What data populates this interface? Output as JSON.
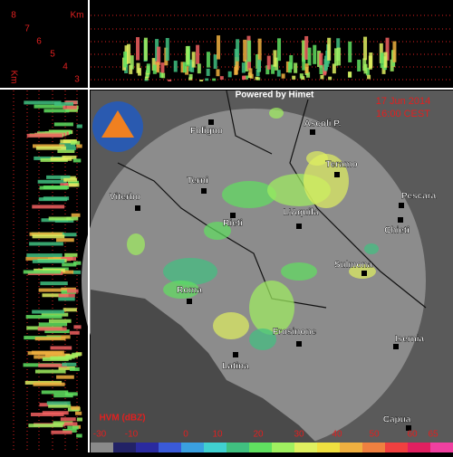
{
  "header": {
    "powered_by": "Powered by Himet",
    "date": "17 Jun 2014",
    "time": "16:00 CEST"
  },
  "height_scale": {
    "unit": "Km",
    "levels": [
      8,
      7,
      6,
      5,
      4,
      3
    ]
  },
  "cities": [
    "Foligno",
    "Ascoli P.",
    "Teramo",
    "Terni",
    "Pescara",
    "Viterbo",
    "Rieti",
    "L'Aquila",
    "Chieti",
    "Sulmona",
    "Roma",
    "Frosinone",
    "Isernia",
    "Latina",
    "Capua"
  ],
  "legend": {
    "title": "HVM (dBZ)",
    "labels": [
      -30,
      -10,
      0,
      10,
      20,
      30,
      40,
      50,
      60,
      65
    ],
    "colors": [
      "#8a8a8a",
      "#222266",
      "#2a2aa0",
      "#3a5ad8",
      "#3aa0e0",
      "#40d0d0",
      "#40c080",
      "#60e060",
      "#a0f060",
      "#e0f060",
      "#f0e040",
      "#f0b040",
      "#f08040",
      "#f04040",
      "#e02060",
      "#f040a0"
    ]
  }
}
